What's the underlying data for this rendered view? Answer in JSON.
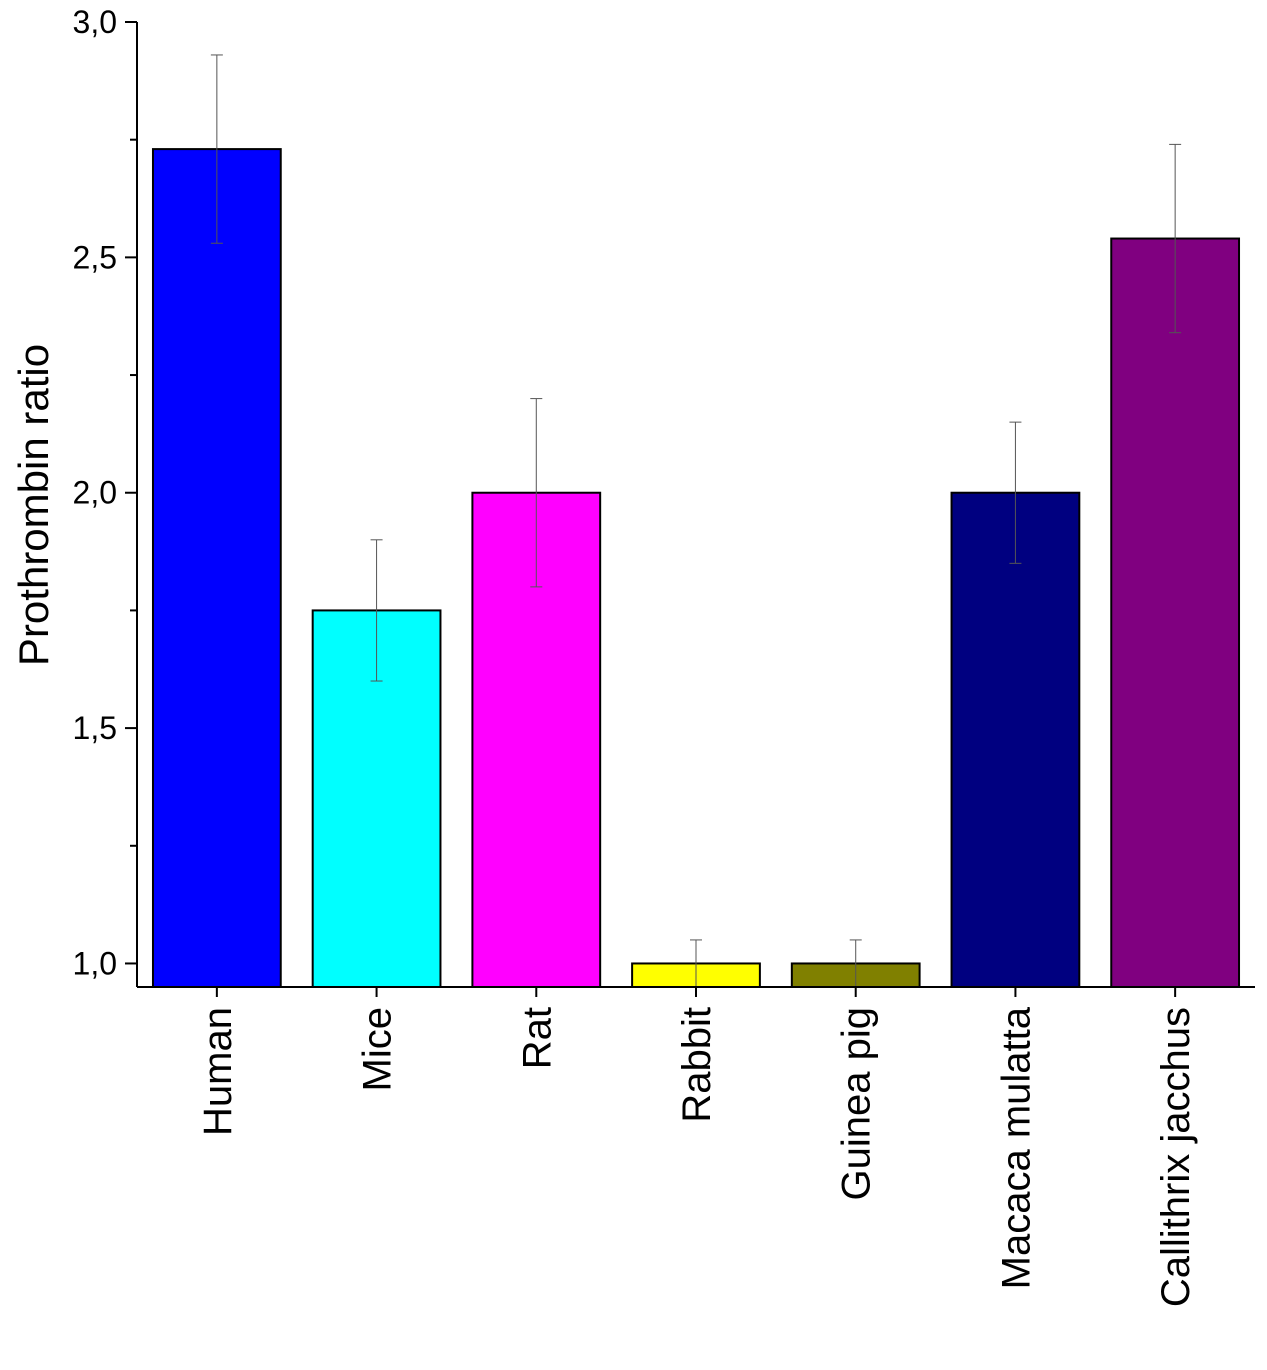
{
  "chart_data": {
    "type": "bar",
    "title": "",
    "xlabel": "",
    "ylabel": "Prothrombin ratio",
    "ylim": [
      0.95,
      3.0
    ],
    "yticks": [
      {
        "value": 1.0,
        "label": "1,0"
      },
      {
        "value": 1.5,
        "label": "1,5"
      },
      {
        "value": 2.0,
        "label": "2,0"
      },
      {
        "value": 2.5,
        "label": "2,5"
      },
      {
        "value": 3.0,
        "label": "3,0"
      }
    ],
    "grid": false,
    "categories": [
      "Human",
      "Mice",
      "Rat",
      "Rabbit",
      "Guinea pig",
      "Macaca mulatta",
      "Callithrix jacchus"
    ],
    "values": [
      2.73,
      1.75,
      2.0,
      1.0,
      1.0,
      2.0,
      2.54
    ],
    "errors": [
      0.2,
      0.15,
      0.2,
      0.05,
      0.05,
      0.15,
      0.2
    ],
    "colors": [
      "#0000ff",
      "#00ffff",
      "#ff00ff",
      "#ffff00",
      "#808000",
      "#000080",
      "#800080"
    ]
  }
}
